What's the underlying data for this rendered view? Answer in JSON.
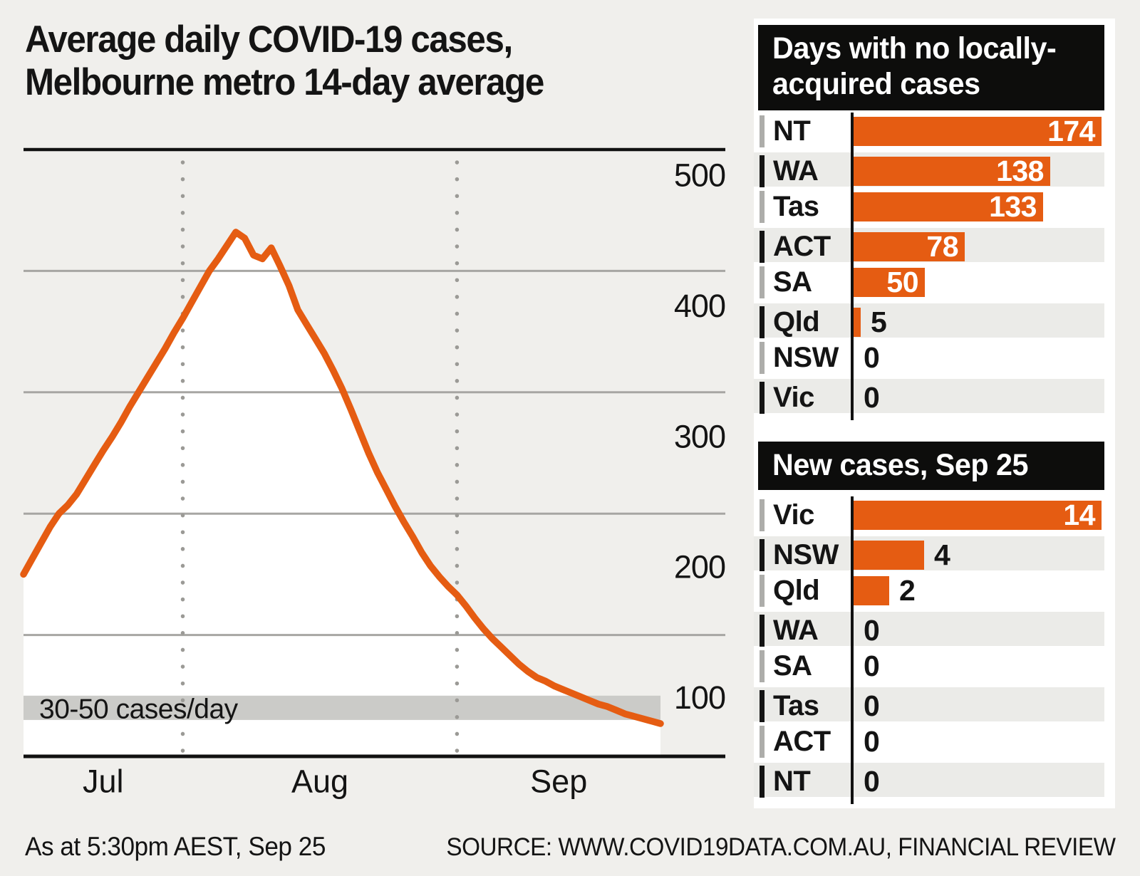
{
  "title": {
    "line1": "Average daily COVID-19 cases,",
    "line2": "Melbourne metro 14-day average"
  },
  "footer": {
    "as_at": "As at 5:30pm AEST, Sep 25",
    "source": "SOURCE: WWW.COVID19DATA.COM.AU, FINANCIAL REVIEW"
  },
  "colors": {
    "accent_orange": "#e55c12",
    "page_bg": "#f0efec",
    "card_bg": "#ffffff",
    "row_stripe": "#ebebe8",
    "band_gray": "#cbcbc8",
    "gridline_gray": "#a7a6a3",
    "dotted_line_gray": "#9b9a96",
    "axis_black": "#111111",
    "header_bg": "#0d0d0c",
    "tick_gray": "#adadaa",
    "text_black": "#141414"
  },
  "chart_data": [
    {
      "type": "line",
      "title": "Average daily COVID-19 cases, Melbourne metro 14-day average",
      "x_start_date": "Jul 14",
      "x_end_date": "Sep 24",
      "month_labels": [
        "Jul",
        "Aug",
        "Sep"
      ],
      "month_boundary_indices": [
        18,
        49
      ],
      "ylabel": "",
      "ylim": [
        0,
        500
      ],
      "yticks": [
        100,
        200,
        300,
        400,
        500
      ],
      "grid": "horizontal",
      "band": {
        "from": 30,
        "to": 50,
        "label": "30-50 cases/day"
      },
      "values": [
        150,
        163,
        176,
        189,
        200,
        207,
        216,
        228,
        240,
        252,
        263,
        275,
        288,
        300,
        312,
        324,
        336,
        349,
        361,
        374,
        387,
        400,
        410,
        421,
        432,
        427,
        413,
        410,
        419,
        404,
        388,
        368,
        356,
        344,
        332,
        318,
        303,
        286,
        268,
        250,
        234,
        220,
        206,
        193,
        181,
        168,
        157,
        148,
        140,
        133,
        124,
        114,
        105,
        97,
        90,
        83,
        76,
        70,
        65,
        62,
        58,
        55,
        52,
        49,
        46,
        43,
        41,
        38,
        35,
        33,
        31,
        29,
        27
      ]
    },
    {
      "type": "bar",
      "orientation": "horizontal",
      "title": "Days with no locally-acquired cases",
      "title_lines": [
        "Days with no locally-",
        "acquired cases"
      ],
      "categories": [
        "NT",
        "WA",
        "Tas",
        "ACT",
        "SA",
        "Qld",
        "NSW",
        "Vic"
      ],
      "values": [
        174,
        138,
        133,
        78,
        50,
        5,
        0,
        0
      ],
      "label_inside": [
        true,
        true,
        true,
        true,
        true,
        false,
        false,
        false
      ]
    },
    {
      "type": "bar",
      "orientation": "horizontal",
      "title": "New cases, Sep 25",
      "title_lines": [
        "New cases, Sep 25"
      ],
      "categories": [
        "Vic",
        "NSW",
        "Qld",
        "WA",
        "SA",
        "Tas",
        "ACT",
        "NT"
      ],
      "values": [
        14,
        4,
        2,
        0,
        0,
        0,
        0,
        0
      ],
      "label_inside": [
        true,
        false,
        false,
        false,
        false,
        false,
        false,
        false
      ]
    }
  ]
}
